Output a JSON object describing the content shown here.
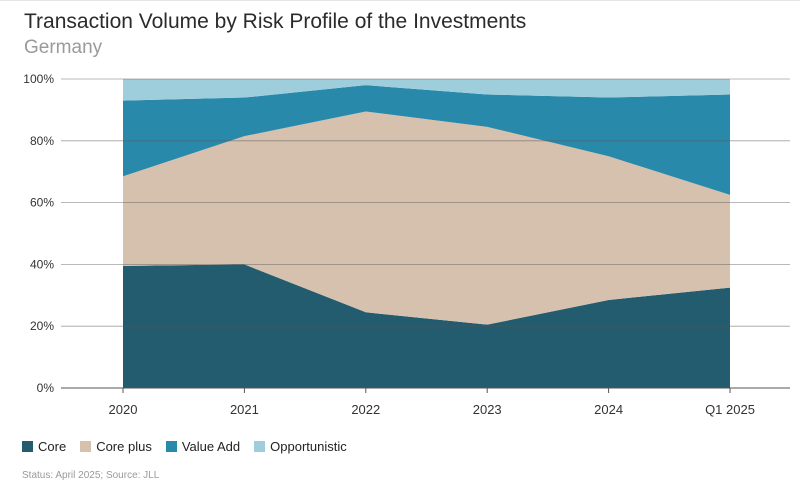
{
  "chart_data": {
    "type": "area",
    "stacked": true,
    "title": "Transaction Volume by Risk Profile of the Investments",
    "subtitle": "Germany",
    "categories": [
      "2020",
      "2021",
      "2022",
      "2023",
      "2024",
      "Q1 2025"
    ],
    "y_ticks": [
      "0%",
      "20%",
      "40%",
      "60%",
      "80%",
      "100%"
    ],
    "ylim": [
      0,
      100
    ],
    "grid": "horizontal",
    "legend_position": "bottom-left",
    "series": [
      {
        "name": "Core",
        "color": "#235b6f",
        "values": [
          39.5,
          40,
          24.5,
          20.5,
          28.5,
          32.5
        ]
      },
      {
        "name": "Core plus",
        "color": "#d6c1ae",
        "values": [
          29,
          41.5,
          65,
          64,
          46.5,
          30
        ]
      },
      {
        "name": "Value Add",
        "color": "#2989aa",
        "values": [
          24.5,
          12.5,
          8.5,
          10.5,
          19,
          32.5
        ]
      },
      {
        "name": "Opportunistic",
        "color": "#9ecddc",
        "values": [
          7,
          6,
          2,
          5,
          6,
          5
        ]
      }
    ]
  },
  "footnote": "Status: April 2025; Source: JLL"
}
